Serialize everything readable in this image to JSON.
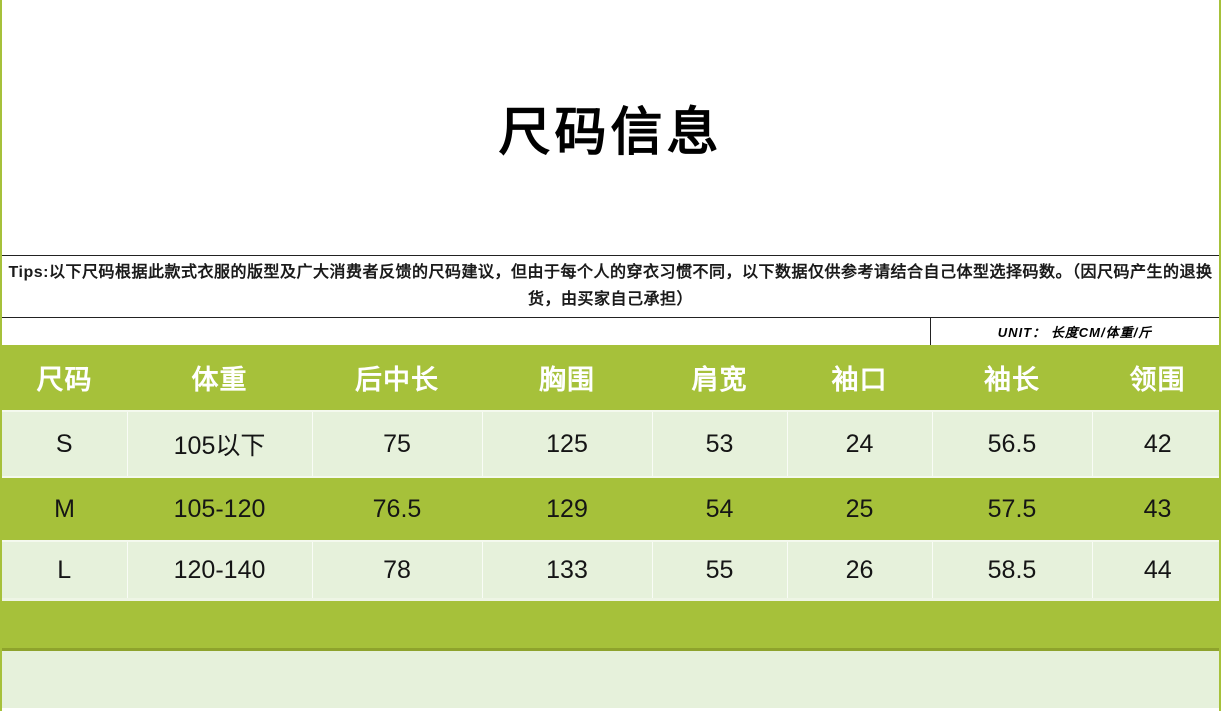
{
  "header": {
    "title": "尺码信息"
  },
  "tips": {
    "text": "Tips:以下尺码根据此款式衣服的版型及广大消费者反馈的尺码建议，但由于每个人的穿衣习惯不同，以下数据仅供参考请结合自己体型选择码数。（因尺码产生的退换货，由买家自己承担）"
  },
  "unit": {
    "label": "UNIT： 长度CM/体重/斤"
  },
  "size_table": {
    "columns": [
      "尺码",
      "体重",
      "后中长",
      "胸围",
      "肩宽",
      "袖口",
      "袖长",
      "领围"
    ],
    "rows": [
      {
        "cells": [
          "S",
          "105以下",
          "75",
          "125",
          "53",
          "24",
          "56.5",
          "42"
        ]
      },
      {
        "cells": [
          "M",
          "105-120",
          "76.5",
          "129",
          "54",
          "25",
          "57.5",
          "43"
        ]
      },
      {
        "cells": [
          "L",
          "120-140",
          "78",
          "133",
          "55",
          "26",
          "58.5",
          "44"
        ]
      }
    ]
  },
  "colors": {
    "accent_green": "#a6c13a",
    "pale_green": "#e6f1db",
    "olive_shadow": "#8ea32c",
    "header_text": "#ffffff",
    "body_text": "#111111",
    "border_black": "#222222"
  }
}
